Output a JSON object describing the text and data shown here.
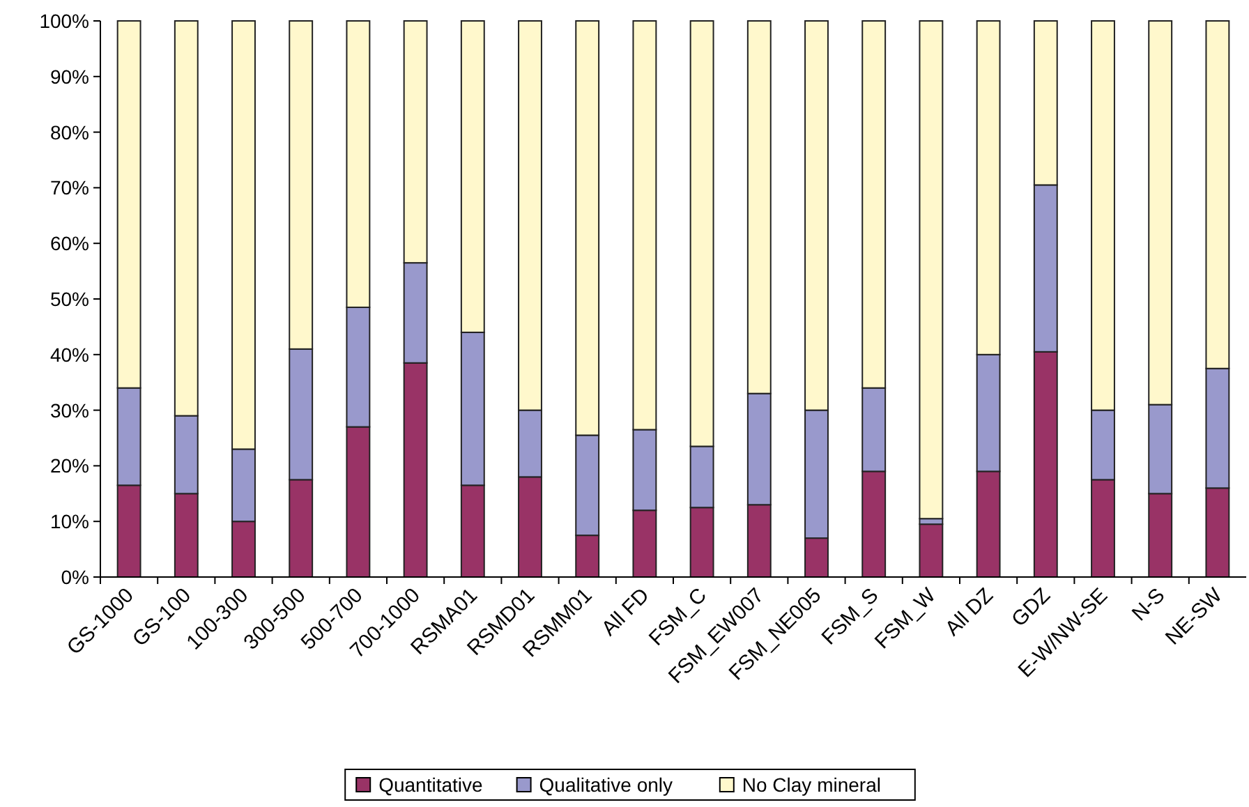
{
  "chart_data": {
    "type": "bar",
    "stacked": true,
    "categories": [
      "GS-1000",
      "GS-100",
      "100-300",
      "300-500",
      "500-700",
      "700-1000",
      "RSMA01",
      "RSMD01",
      "RSMM01",
      "All FD",
      "FSM_C",
      "FSM_EW007",
      "FSM_NE005",
      "FSM_S",
      "FSM_W",
      "All DZ",
      "GDZ",
      "E-W/NW-SE",
      "N-S",
      "NE-SW"
    ],
    "series": [
      {
        "name": "Quantitative",
        "color": "#993366",
        "values": [
          16.5,
          15,
          10,
          17.5,
          27,
          38.5,
          16.5,
          18,
          7.5,
          12,
          12.5,
          13,
          7,
          19,
          9.5,
          19,
          40.5,
          17.5,
          15,
          16
        ]
      },
      {
        "name": "Qualitative only",
        "color": "#9999cc",
        "values": [
          17.5,
          14,
          13,
          23.5,
          21.5,
          18,
          27.5,
          12,
          18,
          14.5,
          11,
          20,
          23,
          15,
          1,
          21,
          30,
          12.5,
          16,
          21.5
        ]
      },
      {
        "name": "No Clay mineral",
        "color": "#fff8cc",
        "values": [
          66,
          71,
          77,
          59,
          51.5,
          43.5,
          56,
          70,
          74.5,
          73.5,
          76.5,
          67,
          70,
          66,
          89.5,
          60,
          29.5,
          70,
          69,
          62.5
        ]
      }
    ],
    "ylim": [
      0,
      100
    ],
    "yticks": [
      {
        "value": 0,
        "label": "0%"
      },
      {
        "value": 10,
        "label": "10%"
      },
      {
        "value": 20,
        "label": "20%"
      },
      {
        "value": 30,
        "label": "30%"
      },
      {
        "value": 40,
        "label": "40%"
      },
      {
        "value": 50,
        "label": "50%"
      },
      {
        "value": 60,
        "label": "60%"
      },
      {
        "value": 70,
        "label": "70%"
      },
      {
        "value": 80,
        "label": "80%"
      },
      {
        "value": 90,
        "label": "90%"
      },
      {
        "value": 100,
        "label": "100%"
      }
    ],
    "legend": "bottom",
    "grid": false
  }
}
